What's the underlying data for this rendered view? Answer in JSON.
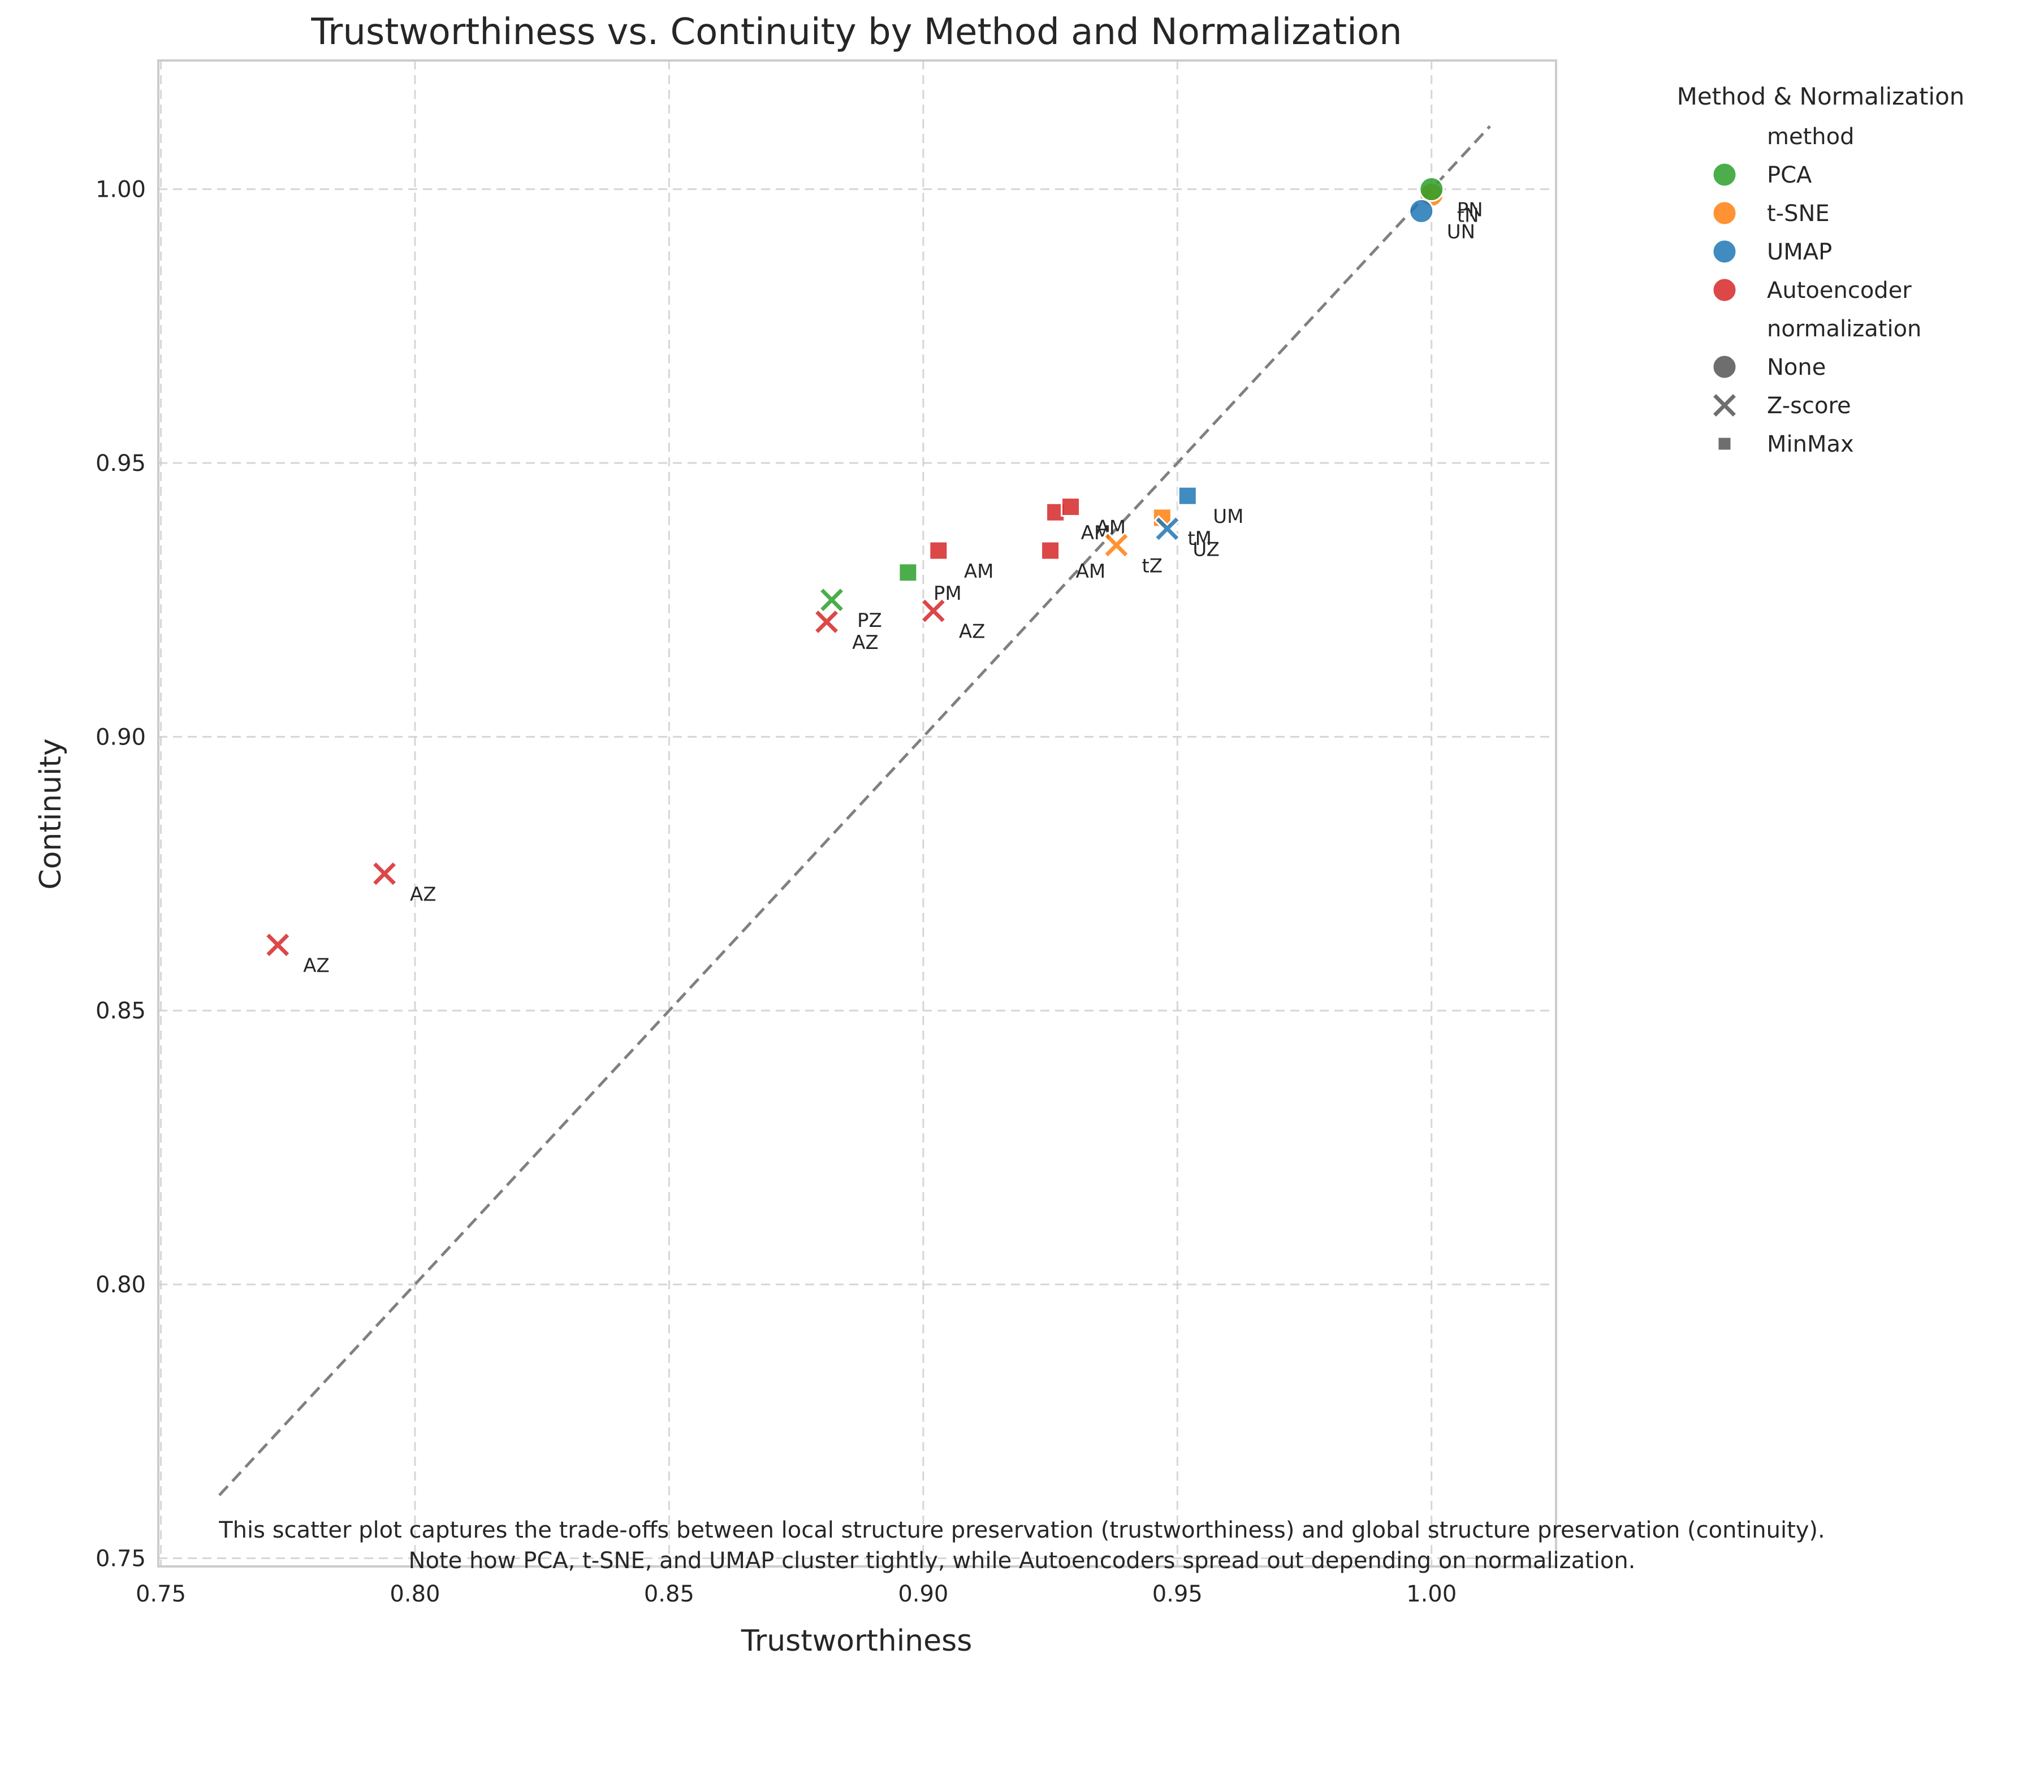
{
  "chart_data": {
    "type": "scatter",
    "title": "Trustworthiness vs. Continuity by Method and Normalization",
    "xlabel": "Trustworthiness",
    "ylabel": "Continuity",
    "xlim": [
      0.7495,
      1.0245
    ],
    "ylim": [
      0.7485,
      1.0235
    ],
    "xticks": [
      "0.75",
      "0.80",
      "0.85",
      "0.90",
      "0.95",
      "1.00"
    ],
    "yticks": [
      "0.75",
      "0.80",
      "0.85",
      "0.90",
      "0.95",
      "1.00"
    ],
    "grid": true,
    "diagonal_reference_line": true,
    "legend": {
      "title": "Method & Normalization",
      "placement": "outside top-right",
      "method_header": "method",
      "normalization_header": "normalization",
      "methods": [
        {
          "name": "PCA",
          "color": "#2ca02c"
        },
        {
          "name": "t-SNE",
          "color": "#ff7f0e"
        },
        {
          "name": "UMAP",
          "color": "#1f77b4"
        },
        {
          "name": "Autoencoder",
          "color": "#d62728"
        }
      ],
      "normalizations": [
        {
          "name": "None",
          "marker": "circle"
        },
        {
          "name": "Z-score",
          "marker": "x"
        },
        {
          "name": "MinMax",
          "marker": "square"
        }
      ]
    },
    "points": [
      {
        "method": "Autoencoder",
        "normalization": "Z-score",
        "x": 0.773,
        "y": 0.862,
        "label": "AZ"
      },
      {
        "method": "Autoencoder",
        "normalization": "Z-score",
        "x": 0.794,
        "y": 0.875,
        "label": "AZ"
      },
      {
        "method": "Autoencoder",
        "normalization": "Z-score",
        "x": 0.881,
        "y": 0.921,
        "label": "AZ"
      },
      {
        "method": "PCA",
        "normalization": "Z-score",
        "x": 0.882,
        "y": 0.925,
        "label": "PZ"
      },
      {
        "method": "PCA",
        "normalization": "MinMax",
        "x": 0.897,
        "y": 0.93,
        "label": "PM"
      },
      {
        "method": "Autoencoder",
        "normalization": "Z-score",
        "x": 0.902,
        "y": 0.923,
        "label": "AZ"
      },
      {
        "method": "Autoencoder",
        "normalization": "MinMax",
        "x": 0.903,
        "y": 0.934,
        "label": "AM"
      },
      {
        "method": "Autoencoder",
        "normalization": "MinMax",
        "x": 0.925,
        "y": 0.934,
        "label": "AM"
      },
      {
        "method": "Autoencoder",
        "normalization": "MinMax",
        "x": 0.926,
        "y": 0.941,
        "label": "AM"
      },
      {
        "method": "Autoencoder",
        "normalization": "MinMax",
        "x": 0.929,
        "y": 0.942,
        "label": "AM"
      },
      {
        "method": "t-SNE",
        "normalization": "Z-score",
        "x": 0.938,
        "y": 0.935,
        "label": "tZ"
      },
      {
        "method": "t-SNE",
        "normalization": "MinMax",
        "x": 0.947,
        "y": 0.94,
        "label": "tM"
      },
      {
        "method": "UMAP",
        "normalization": "Z-score",
        "x": 0.948,
        "y": 0.938,
        "label": "UZ"
      },
      {
        "method": "UMAP",
        "normalization": "MinMax",
        "x": 0.952,
        "y": 0.944,
        "label": "UM"
      },
      {
        "method": "t-SNE",
        "normalization": "None",
        "x": 1.0,
        "y": 0.999,
        "label": "tN"
      },
      {
        "method": "UMAP",
        "normalization": "None",
        "x": 0.998,
        "y": 0.996,
        "label": "UN"
      },
      {
        "method": "PCA",
        "normalization": "None",
        "x": 1.0,
        "y": 1.0,
        "label": "PN"
      }
    ]
  },
  "caption": {
    "line1": "This scatter plot captures the trade-offs between local structure preservation (trustworthiness) and global structure preservation (continuity).",
    "line2": "Note how PCA, t-SNE, and UMAP cluster tightly, while Autoencoders spread out depending on normalization."
  }
}
